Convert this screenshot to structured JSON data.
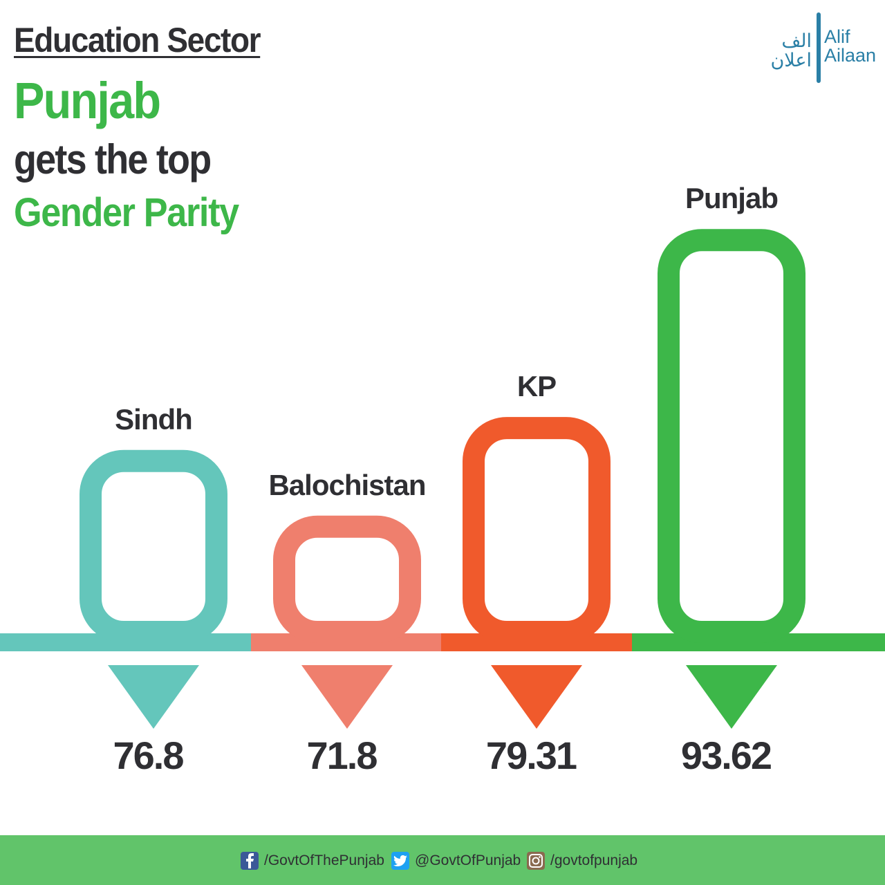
{
  "header": {
    "kicker": "Education Sector",
    "headline_line1": "Punjab",
    "headline_line2": "gets the top",
    "headline_line3": "Gender Parity"
  },
  "logo": {
    "urdu_line1": "الف",
    "urdu_line2": "اعلان",
    "en_line1": "Alif",
    "en_line2": "Ailaan"
  },
  "chart_data": {
    "type": "bar",
    "categories": [
      "Sindh",
      "Balochistan",
      "KP",
      "Punjab"
    ],
    "values": [
      76.8,
      71.8,
      79.31,
      93.62
    ],
    "value_labels": [
      "76.8",
      "71.8",
      "79.31",
      "93.62"
    ],
    "colors": [
      "#64c6bb",
      "#ef7f6d",
      "#f05a2c",
      "#3db749"
    ],
    "title": "",
    "xlabel": "",
    "ylabel": "",
    "grid": false,
    "legend": "none"
  },
  "footer": {
    "facebook": "/GovtOfThePunjab",
    "twitter": "@GovtOfPunjab",
    "instagram": "/govtofpunjab",
    "background": "#61c46a"
  }
}
